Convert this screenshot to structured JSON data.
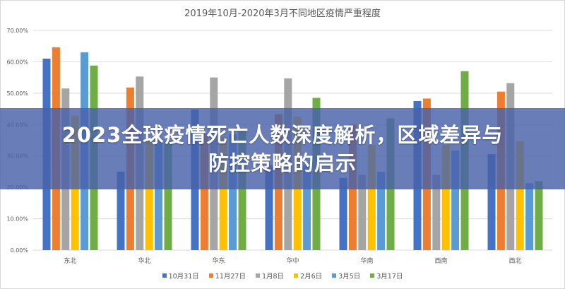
{
  "overlay": {
    "line1": "2023全球疫情死亡人数深度解析，区域差异与",
    "line2": "防控策略的启示"
  },
  "chart_data": {
    "type": "bar",
    "title": "2019年10月-2020年3月不同地区疫情严重程度",
    "categories": [
      "东北",
      "华北",
      "华东",
      "华中",
      "华南",
      "西南",
      "西北"
    ],
    "ylim": [
      0,
      70
    ],
    "yticks": [
      "0.00%",
      "10.00%",
      "20.00%",
      "30.00%",
      "40.00%",
      "50.00%",
      "60.00%",
      "70.00%"
    ],
    "grid": true,
    "legend": "bottom",
    "series": [
      {
        "name": "10月31日",
        "color": "#4472c4",
        "values": [
          61.0,
          25.0,
          44.8,
          27.0,
          23.0,
          47.5,
          30.6
        ]
      },
      {
        "name": "11月27日",
        "color": "#ed7d31",
        "values": [
          64.6,
          51.8,
          37.0,
          43.3,
          40.0,
          48.3,
          50.5
        ]
      },
      {
        "name": "1月8日",
        "color": "#a5a5a5",
        "values": [
          51.5,
          55.3,
          55.0,
          54.7,
          24.0,
          24.0,
          53.2
        ]
      },
      {
        "name": "2月6日",
        "color": "#ffc000",
        "values": [
          42.8,
          35.0,
          36.0,
          42.5,
          33.4,
          33.4,
          34.7
        ]
      },
      {
        "name": "3月5日",
        "color": "#5b9bd5",
        "values": [
          63.0,
          35.0,
          37.0,
          27.0,
          25.0,
          31.8,
          21.3
        ]
      },
      {
        "name": "3月17日",
        "color": "#70ad47",
        "values": [
          58.8,
          34.7,
          38.0,
          48.5,
          42.0,
          57.0,
          22.0
        ]
      }
    ]
  }
}
